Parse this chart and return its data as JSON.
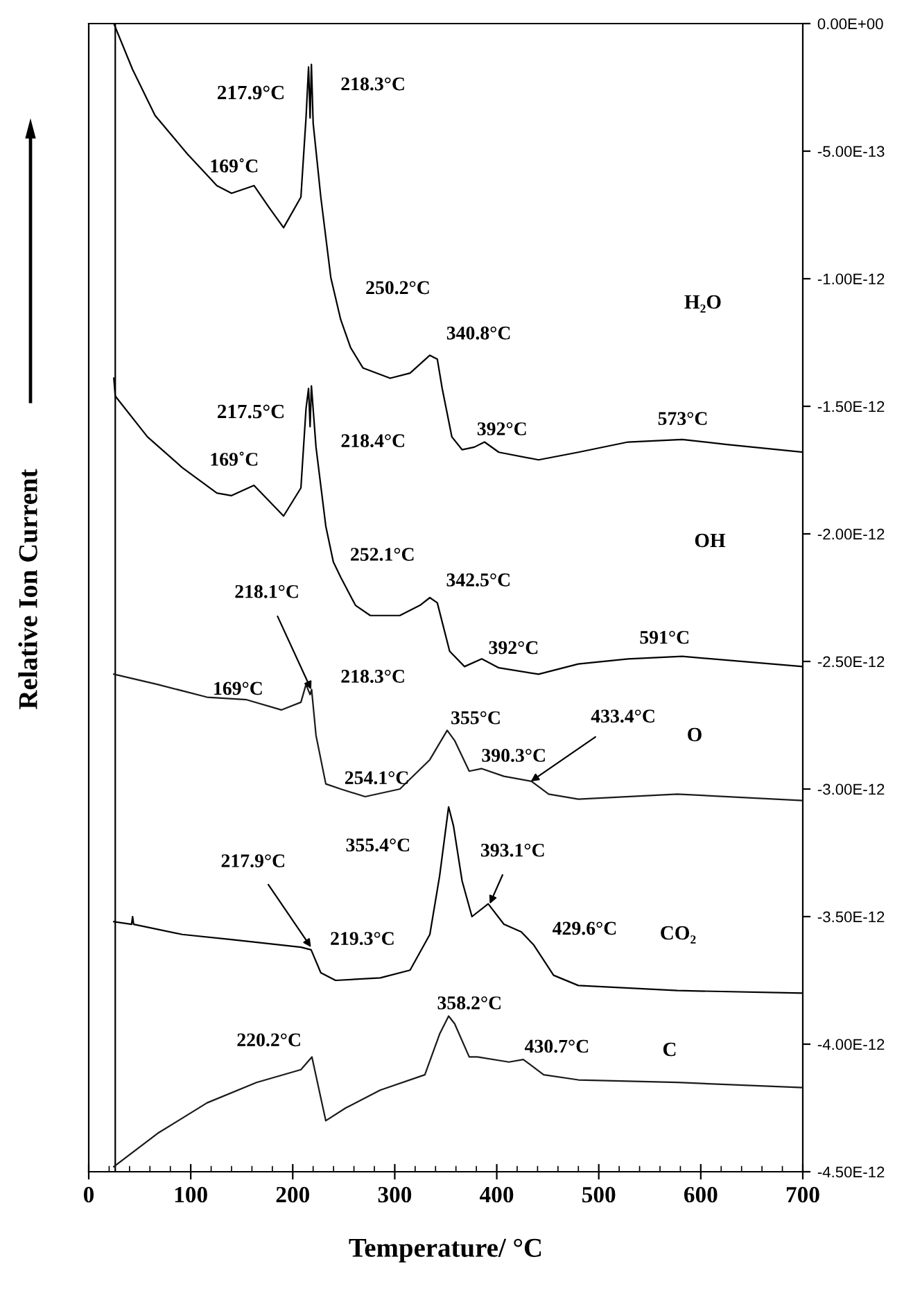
{
  "chart_data": {
    "type": "line",
    "xlabel": "Temperature/ °C",
    "ylabel": "Relative Ion Current",
    "xlim": [
      0,
      700
    ],
    "xticks": [
      0,
      100,
      200,
      300,
      400,
      500,
      600,
      700
    ],
    "ylim": [
      -4.5e-12,
      0
    ],
    "yticks": [
      {
        "value": 0,
        "label": "0.00E+00"
      },
      {
        "value": -5e-13,
        "label": "-5.00E-13"
      },
      {
        "value": -1e-12,
        "label": "-1.00E-12"
      },
      {
        "value": -1.5e-12,
        "label": "-1.50E-12"
      },
      {
        "value": -2e-12,
        "label": "-2.00E-12"
      },
      {
        "value": -2.5e-12,
        "label": "-2.50E-12"
      },
      {
        "value": -3e-12,
        "label": "-3.00E-12"
      },
      {
        "value": -3.5e-12,
        "label": "-3.50E-12"
      },
      {
        "value": -4e-12,
        "label": "-4.00E-12"
      },
      {
        "value": -4.5e-12,
        "label": "-4.50E-12"
      }
    ],
    "series": [
      {
        "color": "#000000",
        "x": [
          26,
          26
        ],
        "values": [
          0,
          -4.5e-12
        ]
      },
      {
        "color": "#000000",
        "x": [
          24.6,
          43,
          65,
          96.5,
          125.6,
          140,
          162,
          176.6,
          191,
          208,
          213,
          215.5,
          217,
          218.3,
          220,
          227.5,
          237.3,
          247,
          256.7,
          268.9,
          295.5,
          315,
          334.4,
          341.7,
          346.5,
          356,
          366,
          378,
          388,
          402,
          441,
          480,
          528.6,
          581.8,
          625.7,
          700
        ],
        "values": [
          0,
          -1.8e-13,
          -3.6e-13,
          -5.1e-13,
          -6.35e-13,
          -6.65e-13,
          -6.35e-13,
          -7.2e-13,
          -8e-13,
          -6.8e-13,
          -3.7e-13,
          -1.7e-13,
          -3.7e-13,
          -1.6e-13,
          -3.9e-13,
          -6.8e-13,
          -9.95e-13,
          -1.16e-12,
          -1.27e-12,
          -1.35e-12,
          -1.39e-12,
          -1.37e-12,
          -1.3e-12,
          -1.315e-12,
          -1.43e-12,
          -1.62e-12,
          -1.67e-12,
          -1.66e-12,
          -1.64e-12,
          -1.68e-12,
          -1.71e-12,
          -1.68e-12,
          -1.64e-12,
          -1.63e-12,
          -1.65e-12,
          -1.68e-12
        ]
      },
      {
        "color": "#000000",
        "x": [
          24.6,
          26,
          57.6,
          91.6,
          125.6,
          140,
          162,
          191,
          208,
          213,
          215.5,
          217,
          218.3,
          222.8,
          232.4,
          239.8,
          247,
          261.5,
          276,
          305,
          324.7,
          334.4,
          341.7,
          353.8,
          368.4,
          385.3,
          402,
          441,
          480,
          528.6,
          581.8,
          700
        ],
        "values": [
          -1.39e-12,
          -1.46e-12,
          -1.62e-12,
          -1.74e-12,
          -1.84e-12,
          -1.85e-12,
          -1.81e-12,
          -1.93e-12,
          -1.82e-12,
          -1.51e-12,
          -1.43e-12,
          -1.58e-12,
          -1.42e-12,
          -1.66e-12,
          -1.97e-12,
          -2.11e-12,
          -2.17e-12,
          -2.28e-12,
          -2.32e-12,
          -2.32e-12,
          -2.28e-12,
          -2.25e-12,
          -2.27e-12,
          -2.46e-12,
          -2.52e-12,
          -2.49e-12,
          -2.525e-12,
          -2.55e-12,
          -2.51e-12,
          -2.49e-12,
          -2.48e-12,
          -2.52e-12
        ]
      },
      {
        "color": "#1a1a1a",
        "x": [
          24.6,
          67.4,
          116,
          154.8,
          188.8,
          208,
          213,
          217,
          218.5,
          222.8,
          232.4,
          247,
          271,
          305,
          334.4,
          351.4,
          358.7,
          373,
          385,
          407,
          434,
          450.9,
          480,
          577,
          700
        ],
        "values": [
          -2.55e-12,
          -2.59e-12,
          -2.64e-12,
          -2.65e-12,
          -2.69e-12,
          -2.66e-12,
          -2.59e-12,
          -2.63e-12,
          -2.61e-12,
          -2.79e-12,
          -2.98e-12,
          -3e-12,
          -3.03e-12,
          -3e-12,
          -2.885e-12,
          -2.77e-12,
          -2.81e-12,
          -2.93e-12,
          -2.92e-12,
          -2.95e-12,
          -2.97e-12,
          -3.02e-12,
          -3.04e-12,
          -3.02e-12,
          -3.045e-12
        ]
      },
      {
        "color": "#000000",
        "x": [
          24.6,
          42,
          43,
          44,
          91.6,
          140,
          208,
          218,
          227.5,
          242,
          285.8,
          315,
          334.4,
          344,
          352.8,
          357.6,
          366,
          375.7,
          391.6,
          407,
          424,
          436,
          455.7,
          480,
          577,
          700
        ],
        "values": [
          -3.52e-12,
          -3.53e-12,
          -3.5e-12,
          -3.53e-12,
          -3.57e-12,
          -3.59e-12,
          -3.62e-12,
          -3.63e-12,
          -3.72e-12,
          -3.75e-12,
          -3.74e-12,
          -3.71e-12,
          -3.57e-12,
          -3.34e-12,
          -3.07e-12,
          -3.145e-12,
          -3.36e-12,
          -3.5e-12,
          -3.45e-12,
          -3.53e-12,
          -3.56e-12,
          -3.61e-12,
          -3.73e-12,
          -3.77e-12,
          -3.79e-12,
          -3.8e-12
        ]
      },
      {
        "color": "#1a1a1a",
        "x": [
          24.6,
          67.4,
          116,
          164.5,
          208,
          218.8,
          232.4,
          251.9,
          285.8,
          329.5,
          344,
          352.8,
          358.7,
          373,
          381,
          412,
          426,
          446,
          480,
          577,
          700
        ],
        "values": [
          -4.48e-12,
          -4.35e-12,
          -4.23e-12,
          -4.15e-12,
          -4.1e-12,
          -4.05e-12,
          -4.3e-12,
          -4.25e-12,
          -4.18e-12,
          -4.12e-12,
          -3.96e-12,
          -3.89e-12,
          -3.92e-12,
          -4.05e-12,
          -4.05e-12,
          -4.07e-12,
          -4.06e-12,
          -4.12e-12,
          -4.14e-12,
          -4.15e-12,
          -4.17e-12
        ]
      }
    ],
    "annotations": [
      "217.9°C",
      {
        "text": "218.3°C",
        "x": 218.3,
        "y": -1.6e-13
      },
      {
        "text": "169˚C",
        "x": 169,
        "y": -6.4e-13
      },
      {
        "text": "250.2°C",
        "x": 250.2,
        "y": -1.2e-12
      },
      {
        "text": "340.8°C",
        "x": 340.8,
        "y": -1.31e-12
      },
      {
        "text": "392°C",
        "x": 392,
        "y": -1.64e-12
      },
      {
        "text": "573°C",
        "x": 573,
        "y": -1.63e-12
      },
      "217.5°C",
      {
        "text": "218.4°C",
        "x": 218.4,
        "y": -1.43e-12
      },
      {
        "text": "169˚C",
        "x": 169,
        "y": -1.82e-12
      },
      {
        "text": "252.1°C",
        "x": 252.1,
        "y": -2.2e-12
      },
      {
        "text": "342.5°C",
        "x": 342.5,
        "y": -2.27e-12
      },
      {
        "text": "392°C",
        "x": 392,
        "y": -2.49e-12
      },
      {
        "text": "591°C",
        "x": 591,
        "y": -2.48e-12
      },
      {
        "text": "218.1°C",
        "x": 218.1,
        "y": -2.61e-12
      },
      {
        "text": "218.3°C",
        "x": 218.3,
        "y": -2.61e-12
      },
      {
        "text": "169°C",
        "x": 169,
        "y": -2.65e-12
      },
      {
        "text": "254.1°C",
        "x": 254.1,
        "y": -3e-12
      },
      {
        "text": "355°C",
        "x": 355,
        "y": -2.78e-12
      },
      {
        "text": "390.3°C",
        "x": 390.3,
        "y": -2.92e-12
      },
      {
        "text": "433.4°C",
        "x": 433.4,
        "y": -2.97e-12
      },
      {
        "text": "217.9°C",
        "x": 217.9,
        "y": -3.62e-12
      },
      {
        "text": "219.3°C",
        "x": 219.3,
        "y": -3.63e-12
      },
      {
        "text": "355.4°C",
        "x": 355.4,
        "y": -3.09e-12
      },
      {
        "text": "393.1°C",
        "x": 393.1,
        "y": -3.45e-12
      },
      {
        "text": "429.6°C",
        "x": 429.6,
        "y": -3.56e-12
      },
      {
        "text": "220.2°C",
        "x": 220.2,
        "y": -4.05e-12
      },
      {
        "text": "358.2°C",
        "x": 358.2,
        "y": -3.89e-12
      },
      {
        "text": "430.7°C",
        "x": 430.7,
        "y": -4.06e-12
      },
      "H₂O",
      "OH",
      "O",
      "CO₂",
      "C"
    ]
  }
}
